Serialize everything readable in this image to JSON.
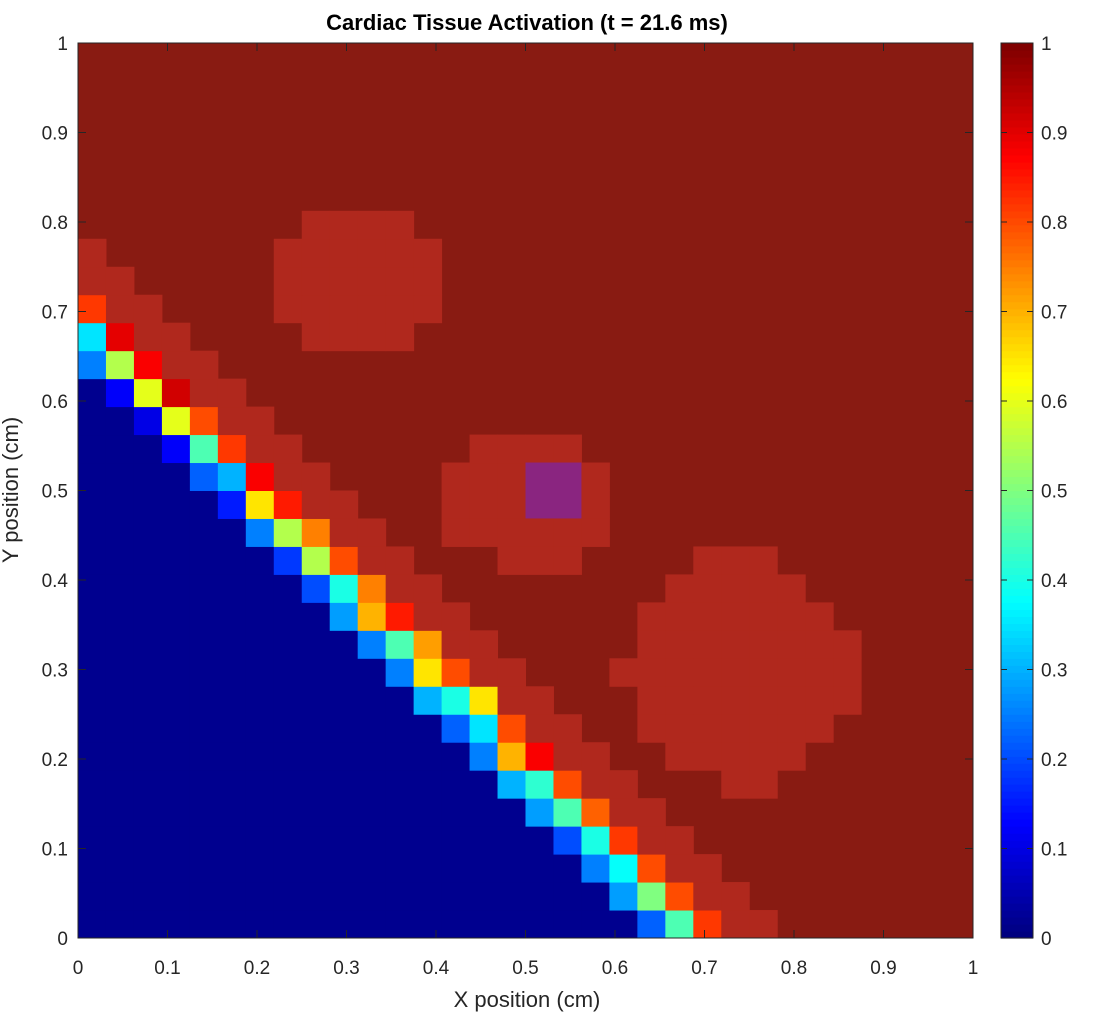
{
  "chart_data": {
    "type": "heatmap",
    "title": "Cardiac Tissue Activation (t = 21.6 ms)",
    "xlabel": "X position (cm)",
    "ylabel": "Y position (cm)",
    "xlim": [
      0,
      1
    ],
    "ylim": [
      0,
      1
    ],
    "xticks": [
      "0",
      "0.1",
      "0.2",
      "0.3",
      "0.4",
      "0.5",
      "0.6",
      "0.7",
      "0.8",
      "0.9",
      "1"
    ],
    "yticks": [
      "0",
      "0.1",
      "0.2",
      "0.3",
      "0.4",
      "0.5",
      "0.6",
      "0.7",
      "0.8",
      "0.9",
      "1"
    ],
    "colorbar": {
      "colormap": "jet",
      "limits": [
        0,
        1
      ],
      "ticks": [
        "0",
        "0.1",
        "0.2",
        "0.3",
        "0.4",
        "0.5",
        "0.6",
        "0.7",
        "0.8",
        "0.9",
        "1"
      ]
    },
    "grid": {
      "rows": 32,
      "cols": 32,
      "cell_size_cm": 0.03125
    },
    "background_value": 1.0,
    "wavefront": {
      "description": "diagonal activation front from (0, ~0.53) to (~0.66, 0); values behind the front are 0",
      "diagonal_values": [
        0.85,
        0.95,
        0.98
      ],
      "band_values": {
        "offset_-1": [
          0.25,
          0.12,
          0.1,
          0.12,
          0.22,
          0.15,
          0.25,
          0.18,
          0.2,
          0.28,
          0.25,
          0.25,
          0.3,
          0.22,
          0.25,
          0.3,
          0.28,
          0.2,
          0.25,
          0.28,
          0.22
        ],
        "offset_0": [
          0.35,
          0.55,
          0.6,
          0.6,
          0.45,
          0.3,
          0.65,
          0.55,
          0.55,
          0.4,
          0.7,
          0.45,
          0.65,
          0.4,
          0.35,
          0.7,
          0.42,
          0.45,
          0.4,
          0.38,
          0.5,
          0.45
        ],
        "offset_1": [
          0.82,
          0.9,
          0.88,
          0.92,
          0.8,
          0.82,
          0.88,
          0.85,
          0.75,
          0.8,
          0.75,
          0.85,
          0.72,
          0.8,
          0.65,
          0.8,
          0.88,
          0.8,
          0.78,
          0.82,
          0.8,
          0.8
        ]
      }
    },
    "regions": [
      {
        "name": "patch upper-left",
        "value": 0.96,
        "center": [
          0.27,
          0.72
        ]
      },
      {
        "name": "patch center",
        "value": 0.96,
        "center": [
          0.5,
          0.47
        ]
      },
      {
        "name": "stimulus site",
        "value": 0.78,
        "center": [
          0.5,
          0.47
        ]
      },
      {
        "name": "patch lower-right",
        "value": 0.96,
        "center": [
          0.7,
          0.3
        ]
      }
    ]
  }
}
